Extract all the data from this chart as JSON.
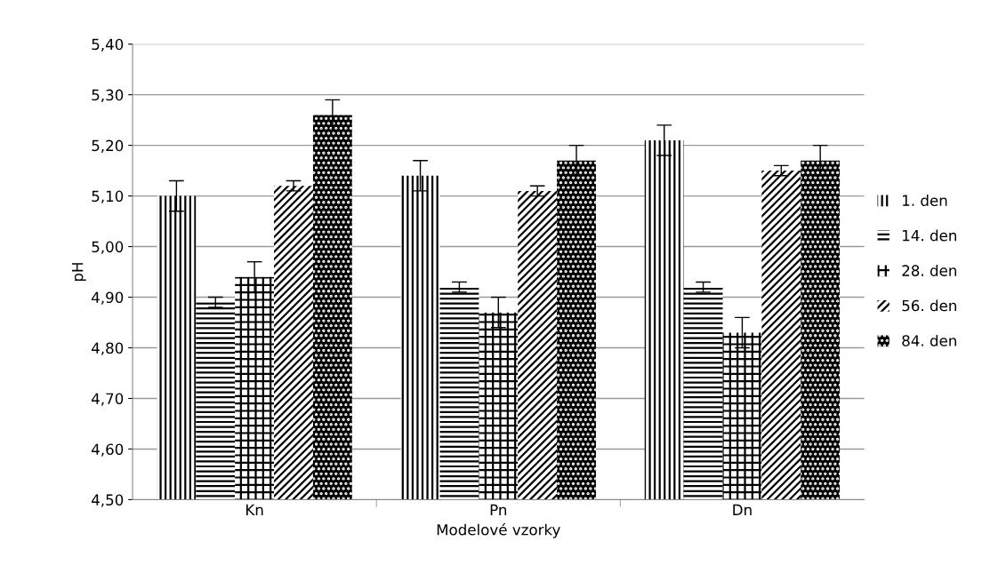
{
  "chart_data": {
    "type": "bar",
    "xlabel": "Modelové vzorky",
    "ylabel": "pH",
    "categories": [
      "Kn",
      "Pn",
      "Dn"
    ],
    "series": [
      {
        "name": "1. den",
        "color": "#000000",
        "values": [
          5.1,
          5.14,
          5.21
        ],
        "errors": [
          0.03,
          0.03,
          0.03
        ]
      },
      {
        "name": "14. den",
        "color": "#000000",
        "values": [
          4.89,
          4.92,
          4.92
        ],
        "errors": [
          0.01,
          0.01,
          0.01
        ]
      },
      {
        "name": "28. den",
        "color": "#000000",
        "values": [
          4.94,
          4.87,
          4.83
        ],
        "errors": [
          0.03,
          0.03,
          0.03
        ]
      },
      {
        "name": "56. den",
        "color": "#000000",
        "values": [
          5.12,
          5.11,
          5.15
        ],
        "errors": [
          0.01,
          0.01,
          0.01
        ]
      },
      {
        "name": "84. den",
        "color": "#000000",
        "values": [
          5.26,
          5.17,
          5.17
        ],
        "errors": [
          0.03,
          0.03,
          0.03
        ]
      }
    ],
    "ylim": [
      4.5,
      5.4
    ],
    "yticks": [
      {
        "value": 4.5,
        "label": "4,50"
      },
      {
        "value": 4.6,
        "label": "4,60"
      },
      {
        "value": 4.7,
        "label": "4,70"
      },
      {
        "value": 4.8,
        "label": "4,80"
      },
      {
        "value": 4.9,
        "label": "4,90"
      },
      {
        "value": 5.0,
        "label": "5,00"
      },
      {
        "value": 5.1,
        "label": "5,10"
      },
      {
        "value": 5.2,
        "label": "5,20"
      },
      {
        "value": 5.3,
        "label": "5,30"
      },
      {
        "value": 5.4,
        "label": "5,40"
      }
    ],
    "grid": "y",
    "legend": "right"
  }
}
